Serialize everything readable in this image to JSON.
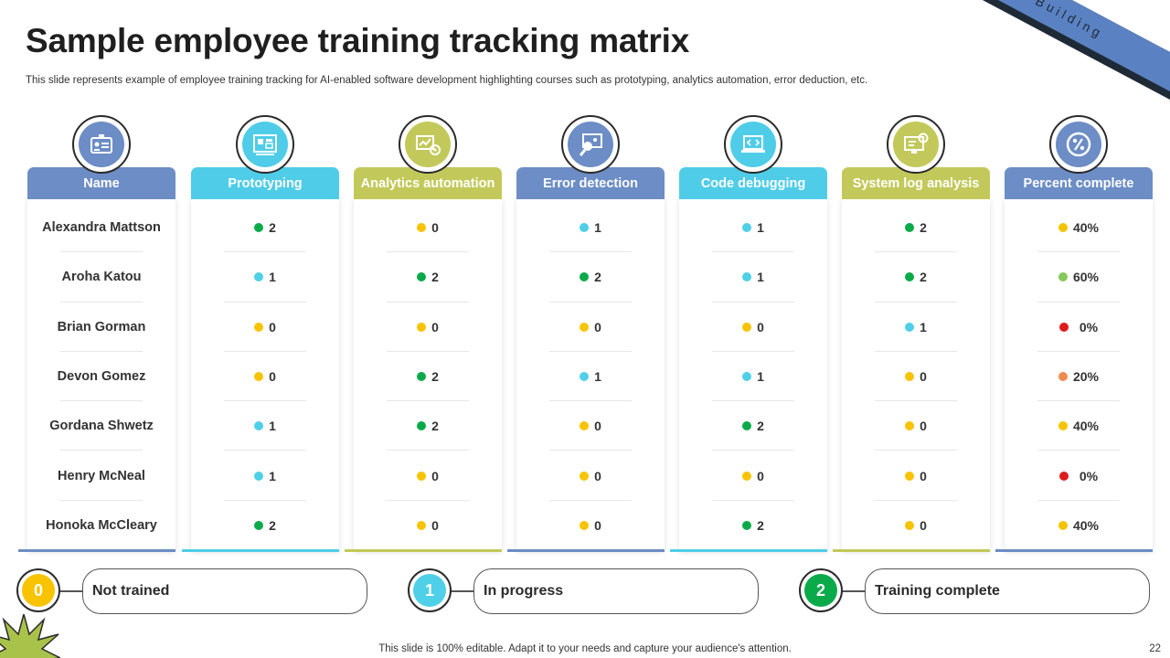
{
  "title": "Sample employee training tracking matrix",
  "subtitle": "This slide represents example of employee training tracking for AI-enabled software development highlighting courses such as prototyping, analytics automation, error deduction, etc.",
  "ribbon_text": "Skill Building",
  "colors": {
    "blue": "#6c8dc5",
    "cyan": "#4fcde8",
    "olive": "#c2c95a",
    "level_0": "#f8c300",
    "level_1": "#4fd0e8",
    "level_2": "#0aaa4a",
    "pct_0": "#e01a1a",
    "pct_20": "#ee8a50",
    "pct_40": "#f5c400",
    "pct_60": "#86c95a"
  },
  "columns": [
    {
      "header": "Name",
      "icon": "id-badge-icon",
      "color": "#6c8dc5"
    },
    {
      "header": "Prototyping",
      "icon": "blueprint-icon",
      "color": "#4fcde8"
    },
    {
      "header": "Analytics automation",
      "icon": "analytics-gear-icon",
      "color": "#c2c95a"
    },
    {
      "header": "Error detection",
      "icon": "magnifier-bug-icon",
      "color": "#6c8dc5"
    },
    {
      "header": "Code debugging",
      "icon": "code-laptop-icon",
      "color": "#4fcde8"
    },
    {
      "header": "System log analysis",
      "icon": "monitor-gear-icon",
      "color": "#c2c95a"
    },
    {
      "header": "Percent complete",
      "icon": "percent-icon",
      "color": "#6c8dc5"
    }
  ],
  "rows": [
    {
      "name": "Alexandra Mattson",
      "scores": [
        "2",
        "0",
        "1",
        "1",
        "2"
      ],
      "percent": "40%"
    },
    {
      "name": "Aroha Katou",
      "scores": [
        "1",
        "2",
        "2",
        "1",
        "2"
      ],
      "percent": "60%"
    },
    {
      "name": "Brian Gorman",
      "scores": [
        "0",
        "0",
        "0",
        "0",
        "1"
      ],
      "percent": "0%"
    },
    {
      "name": "Devon Gomez",
      "scores": [
        "0",
        "2",
        "1",
        "1",
        "0"
      ],
      "percent": "20%"
    },
    {
      "name": "Gordana Shwetz",
      "scores": [
        "1",
        "2",
        "0",
        "2",
        "0"
      ],
      "percent": "40%"
    },
    {
      "name": "Henry McNeal",
      "scores": [
        "1",
        "0",
        "0",
        "0",
        "0"
      ],
      "percent": "0%"
    },
    {
      "name": "Honoka McCleary",
      "scores": [
        "2",
        "0",
        "0",
        "2",
        "0"
      ],
      "percent": "40%"
    }
  ],
  "legend": [
    {
      "value": "0",
      "label": "Not trained",
      "color": "#f8c300"
    },
    {
      "value": "1",
      "label": "In progress",
      "color": "#4fd0e8"
    },
    {
      "value": "2",
      "label": "Training complete",
      "color": "#0aaa4a"
    }
  ],
  "footer": "This slide is 100% editable. Adapt it to your needs and capture your audience's attention.",
  "page_number": "22"
}
